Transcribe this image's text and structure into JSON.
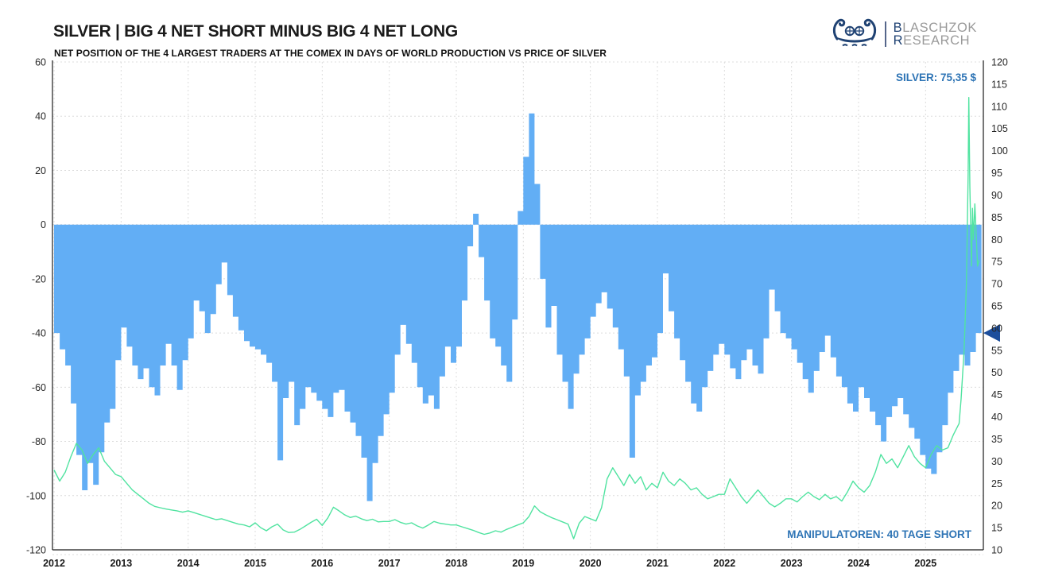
{
  "header": {
    "title": "SILVER | BIG 4 NET SHORT MINUS BIG 4 NET LONG",
    "subtitle": "NET POSITION OF THE 4 LARGEST TRADERS AT THE COMEX IN DAYS OF WORLD PRODUCTION VS PRICE OF SILVER"
  },
  "logo": {
    "line1_initial": "B",
    "line1_rest": "LASCHZOK",
    "line2_initial": "R",
    "line2_rest": "ESEARCH"
  },
  "annotations": {
    "silver_price_label": "SILVER: 75,35 $",
    "manipulators_label": "MANIPULATOREN: 40 TAGE SHORT"
  },
  "colors": {
    "area_blue": "#62aef5",
    "silver_green": "#50e3a0",
    "label_blue": "#2e74b5",
    "marker_navy": "#1c4e9c",
    "logo_navy": "#1f4273",
    "logo_gray": "#9a9a9a",
    "grid": "#dcdcdc",
    "axis_line": "#1a1a1a",
    "tick_text": "#262626",
    "year_text": "#1a1a1a"
  },
  "chart_data": {
    "type": "area+line",
    "title": "SILVER | BIG 4 NET SHORT MINUS BIG 4 NET LONG",
    "subtitle": "NET POSITION OF THE 4 LARGEST TRADERS AT THE COMEX IN DAYS OF WORLD PRODUCTION VS PRICE OF SILVER",
    "grid": true,
    "x_axis": {
      "range": [
        2011.976,
        2025.862
      ],
      "ticks": [
        2012,
        2013,
        2014,
        2015,
        2016,
        2017,
        2018,
        2019,
        2020,
        2021,
        2022,
        2023,
        2024,
        2025
      ]
    },
    "left_axis": {
      "range": [
        -120,
        60
      ],
      "ticks": [
        60,
        40,
        20,
        0,
        -20,
        -40,
        -60,
        -80,
        -100,
        -120
      ]
    },
    "right_axis": {
      "range": [
        10,
        120
      ],
      "ticks": [
        120,
        115,
        110,
        105,
        100,
        95,
        90,
        85,
        80,
        75,
        70,
        65,
        60,
        55,
        50,
        45,
        40,
        35,
        30,
        25,
        20,
        15,
        10
      ]
    },
    "series": [
      {
        "name": "big4_net_position_days",
        "type": "area-step",
        "axis": "left",
        "color_key": "area_blue",
        "x_start": 2012.0,
        "x_step": 0.0833333,
        "values": [
          -40,
          -46,
          -52,
          -66,
          -85,
          -98,
          -88,
          -96,
          -84,
          -73,
          -68,
          -50,
          -38,
          -45,
          -52,
          -57,
          -53,
          -60,
          -63,
          -52,
          -44,
          -52,
          -61,
          -50,
          -42,
          -28,
          -32,
          -40,
          -33,
          -22,
          -14,
          -26,
          -34,
          -39,
          -43,
          -45,
          -46,
          -48,
          -51,
          -58,
          -87,
          -64,
          -58,
          -74,
          -68,
          -60,
          -62,
          -65,
          -68,
          -71,
          -62,
          -61,
          -69,
          -73,
          -78,
          -86,
          -102,
          -88,
          -78,
          -70,
          -62,
          -48,
          -37,
          -44,
          -51,
          -60,
          -66,
          -63,
          -68,
          -56,
          -45,
          -51,
          -45,
          -28,
          -8,
          4,
          -12,
          -28,
          -42,
          -45,
          -52,
          -58,
          -35,
          5,
          25,
          41,
          15,
          -20,
          -38,
          -30,
          -48,
          -58,
          -68,
          -55,
          -48,
          -42,
          -34,
          -29,
          -25,
          -31,
          -38,
          -46,
          -56,
          -86,
          -63,
          -58,
          -52,
          -49,
          -40,
          -18,
          -32,
          -42,
          -50,
          -58,
          -66,
          -69,
          -60,
          -54,
          -48,
          -44,
          -48,
          -53,
          -57,
          -50,
          -46,
          -52,
          -55,
          -42,
          -24,
          -32,
          -40,
          -42,
          -46,
          -51,
          -57,
          -62,
          -54,
          -47,
          -41,
          -49,
          -56,
          -60,
          -66,
          -69,
          -60,
          -64,
          -69,
          -74,
          -80,
          -71,
          -67,
          -64,
          -70,
          -75,
          -79,
          -85,
          -90,
          -92,
          -84,
          -74,
          -62,
          -54,
          -48,
          -52,
          -47,
          -40
        ]
      },
      {
        "name": "silver_price_usd",
        "type": "line",
        "axis": "right",
        "color_key": "silver_green",
        "x_start": 2012.0,
        "x_step": 0.0833333,
        "values": [
          28,
          25.5,
          27.5,
          31,
          34,
          32.5,
          29.5,
          31.5,
          33,
          30,
          28.5,
          27,
          26.5,
          25,
          23.5,
          22.5,
          21.5,
          20.5,
          19.8,
          19.5,
          19.2,
          19,
          18.8,
          18.5,
          18.8,
          18.4,
          18,
          17.6,
          17.2,
          16.8,
          17,
          16.6,
          16.2,
          15.8,
          15.6,
          15.2,
          16.1,
          15,
          14.3,
          15.2,
          15.8,
          14.5,
          13.9,
          14,
          14.6,
          15.4,
          16.2,
          16.9,
          15.5,
          17.2,
          19.6,
          18.8,
          17.9,
          17.3,
          17.6,
          17,
          16.6,
          16.9,
          16.3,
          16.4,
          16.4,
          16.8,
          16.2,
          15.8,
          16.1,
          15.4,
          14.9,
          15.6,
          16.4,
          16,
          15.8,
          15.6,
          15.6,
          15.2,
          14.8,
          14.4,
          13.9,
          13.5,
          13.8,
          14.3,
          14,
          14.6,
          15.1,
          15.6,
          16.1,
          17.5,
          19.9,
          18.6,
          17.9,
          17.3,
          16.8,
          16.3,
          15.8,
          12.5,
          16,
          17.5,
          17,
          16.5,
          19.5,
          26,
          28.5,
          26.5,
          24.5,
          27,
          25,
          26.5,
          23.5,
          25,
          24,
          27.5,
          25.5,
          24.5,
          26,
          25,
          23.5,
          24,
          22.5,
          21.5,
          22,
          22.5,
          22.5,
          26,
          24,
          22,
          20.5,
          22,
          23.5,
          22,
          20.5,
          19.7,
          20.5,
          21.5,
          21.5,
          20.8,
          22,
          23,
          22,
          21.3,
          22.5,
          21.5,
          22,
          21,
          23,
          25.5,
          24,
          23,
          24.5,
          27.5,
          31.5,
          29.5,
          30.5,
          28.5,
          31,
          33.5,
          31,
          29.5,
          28.5,
          31.5,
          33.5,
          32.5,
          33,
          36,
          38.5
        ],
        "tail_x": [
          2025.53,
          2025.575,
          2025.61,
          2025.635,
          2025.645,
          2025.66,
          2025.685,
          2025.7,
          2025.715,
          2025.735,
          2025.775,
          2025.8
        ],
        "tail_values": [
          44,
          55,
          70,
          95,
          112,
          92,
          74,
          87,
          80,
          88,
          74,
          75.35
        ]
      },
      {
        "name": "current_value_marker",
        "type": "marker-triangle",
        "axis": "left",
        "value": -40,
        "color_key": "marker_navy"
      }
    ]
  }
}
